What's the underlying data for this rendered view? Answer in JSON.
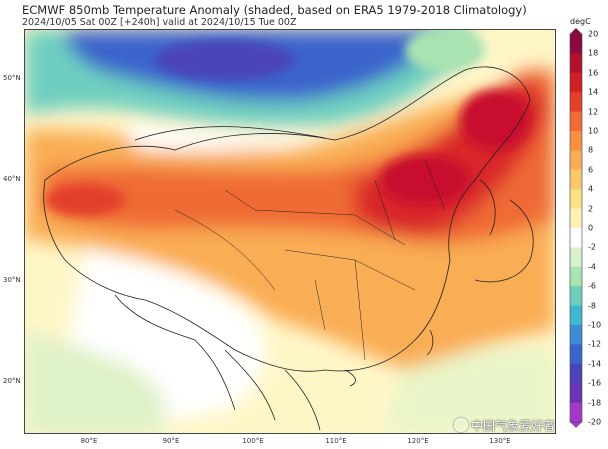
{
  "header": {
    "title": "ECMWF 850mb Temperature Anomaly (shaded, based on ERA5 1979-2018 Climatology)",
    "subtitle": "2024/10/05 Sat 00Z [+240h] valid at 2024/10/15 Tue 00Z"
  },
  "map": {
    "lat_labels": [
      "50°N",
      "40°N",
      "30°N",
      "20°N"
    ],
    "lon_labels": [
      "80°E",
      "90°E",
      "100°E",
      "110°E",
      "120°E",
      "130°E"
    ],
    "region": "East Asia / China",
    "field_description_colors": {
      "strong_warm": "#c8102e",
      "warm": "#ee4b2b",
      "mild_warm": "#f8a445",
      "slight_warm": "#fde07a",
      "near_zero": "#ffffff",
      "slight_cool": "#b7e8b4",
      "cool": "#5fd3c6",
      "cold": "#3a56c9"
    }
  },
  "colorbar": {
    "unit": "degC",
    "ticks": [
      "20",
      "18",
      "16",
      "14",
      "12",
      "10",
      "8",
      "6",
      "4",
      "2",
      "0",
      "-2",
      "-4",
      "-6",
      "-8",
      "-10",
      "-12",
      "-14",
      "-16",
      "-18",
      "-20"
    ],
    "colors": [
      "#8b0a3e",
      "#b2102f",
      "#cf2027",
      "#e3402b",
      "#ef6a35",
      "#f68f42",
      "#f9ad55",
      "#fbc76a",
      "#fde085",
      "#fff3b8",
      "#ffffff",
      "#d8f1cf",
      "#a9e3b1",
      "#6ecfc0",
      "#3fb6d2",
      "#3b8ed6",
      "#3b64cc",
      "#4b44b8",
      "#6a36b5",
      "#a23ac7"
    ]
  },
  "watermark": {
    "text": "中国气象爱好者"
  }
}
